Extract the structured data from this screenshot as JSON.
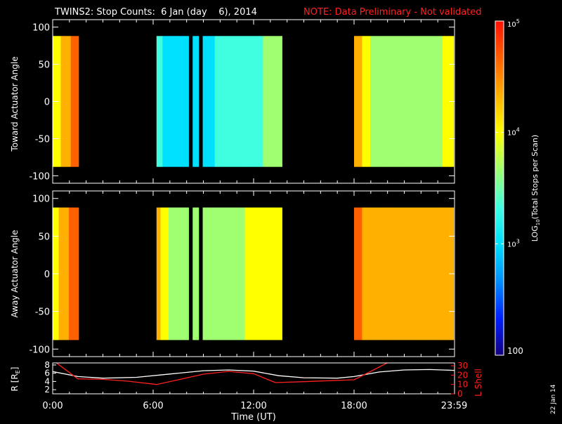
{
  "header": {
    "title": "TWINS2: Stop Counts:  6 Jan (day    6), 2014",
    "note": "NOTE: Data Preliminary - Not validated",
    "title_color": "#ffffff",
    "note_color": "#ff2020"
  },
  "side_stamp": "22 Jan 14",
  "colors": {
    "background": "#000000",
    "axis": "#ffffff",
    "colorscale": [
      "#140080",
      "#0020ff",
      "#0090ff",
      "#00e0ff",
      "#40ffe0",
      "#a0ff70",
      "#ffff00",
      "#ffb000",
      "#ff6000",
      "#ff1000"
    ],
    "r_line": "#ffffff",
    "lshell_line": "#ff2020"
  },
  "chart_data": [
    {
      "type": "heatmap",
      "panel": "toward",
      "ylabel": "Toward Actuator Angle",
      "xlim": [
        0,
        24
      ],
      "ylim": [
        -110,
        110
      ],
      "yticks": [
        "100",
        "50",
        "0",
        "-50",
        "-100"
      ],
      "ytick_values": [
        100,
        50,
        0,
        -50,
        -100
      ],
      "data_angle_range": [
        -88,
        88
      ],
      "data_intervals_hours": [
        [
          0.0,
          1.55
        ],
        [
          6.2,
          13.7
        ],
        [
          18.0,
          23.95
        ]
      ],
      "gaps_hours": [
        [
          8.15,
          8.4
        ],
        [
          8.7,
          8.95
        ]
      ],
      "log10_counts_profile": [
        {
          "t": 0.0,
          "v": 3.85
        },
        {
          "t": 0.6,
          "v": 4.2
        },
        {
          "t": 1.4,
          "v": 4.5
        },
        {
          "t": 6.2,
          "v": 3.3
        },
        {
          "t": 7.0,
          "v": 3.1
        },
        {
          "t": 9.0,
          "v": 3.15
        },
        {
          "t": 11.0,
          "v": 3.3
        },
        {
          "t": 12.5,
          "v": 3.5
        },
        {
          "t": 13.7,
          "v": 3.7
        },
        {
          "t": 18.0,
          "v": 4.4
        },
        {
          "t": 19.0,
          "v": 3.8
        },
        {
          "t": 21.0,
          "v": 3.6
        },
        {
          "t": 23.0,
          "v": 3.7
        },
        {
          "t": 23.95,
          "v": 4.0
        }
      ]
    },
    {
      "type": "heatmap",
      "panel": "away",
      "ylabel": "Away Actuator Angle",
      "xlim": [
        0,
        24
      ],
      "ylim": [
        -110,
        110
      ],
      "yticks": [
        "100",
        "50",
        "0",
        "-50",
        "-100"
      ],
      "ytick_values": [
        100,
        50,
        0,
        -50,
        -100
      ],
      "data_angle_range": [
        -88,
        88
      ],
      "data_intervals_hours": [
        [
          0.0,
          1.55
        ],
        [
          6.2,
          13.7
        ],
        [
          18.0,
          23.95
        ]
      ],
      "gaps_hours": [
        [
          8.15,
          8.4
        ],
        [
          8.7,
          8.95
        ]
      ],
      "log10_counts_profile": [
        {
          "t": 0.0,
          "v": 3.9
        },
        {
          "t": 0.6,
          "v": 4.25
        },
        {
          "t": 1.4,
          "v": 4.6
        },
        {
          "t": 6.2,
          "v": 4.3
        },
        {
          "t": 7.0,
          "v": 3.7
        },
        {
          "t": 9.0,
          "v": 3.6
        },
        {
          "t": 11.0,
          "v": 3.75
        },
        {
          "t": 12.5,
          "v": 3.9
        },
        {
          "t": 13.7,
          "v": 4.1
        },
        {
          "t": 18.0,
          "v": 4.5
        },
        {
          "t": 19.0,
          "v": 4.3
        },
        {
          "t": 21.0,
          "v": 4.2
        },
        {
          "t": 23.0,
          "v": 4.25
        },
        {
          "t": 23.95,
          "v": 4.4
        }
      ]
    },
    {
      "type": "line",
      "panel": "orbit",
      "ylabel": "R [R",
      "ylabel_sub": "E",
      "ylabel_close": "]",
      "y2label": "L Shell",
      "xlabel": "Time (UT)",
      "xticks": [
        "0:00",
        "6:00",
        "12:00",
        "18:00",
        "23:59"
      ],
      "xtick_values": [
        0,
        6,
        12,
        18,
        23.98
      ],
      "xlim": [
        0,
        24
      ],
      "ylim": [
        1,
        8.5
      ],
      "yticks": [
        "8",
        "6",
        "4",
        "2"
      ],
      "ytick_values": [
        8,
        6,
        4,
        2
      ],
      "y2lim": [
        0,
        33
      ],
      "y2ticks": [
        "30",
        "20",
        "10",
        "0"
      ],
      "y2tick_values": [
        30,
        20,
        10,
        0
      ],
      "series": [
        {
          "name": "R",
          "axis": "left",
          "x": [
            0,
            1.5,
            3,
            5,
            7,
            9,
            10.5,
            12,
            13.5,
            15,
            17,
            18,
            19.5,
            21,
            22.5,
            23.98
          ],
          "values": [
            6.4,
            5.2,
            4.8,
            5.0,
            5.8,
            6.6,
            6.8,
            6.5,
            5.4,
            4.9,
            4.8,
            5.2,
            6.3,
            6.8,
            6.9,
            6.7
          ]
        },
        {
          "name": "L Shell",
          "axis": "right",
          "x": [
            0,
            1.5,
            3,
            4.5,
            6.2,
            7.5,
            9,
            10.5,
            12,
            13.3,
            15,
            16.5,
            18,
            19,
            20.2
          ],
          "values": [
            36,
            16,
            15.5,
            13.5,
            10,
            15,
            21,
            24,
            21.5,
            12,
            13,
            14,
            15,
            24,
            35
          ]
        }
      ]
    },
    {
      "type": "heatmap",
      "panel": "colorbar",
      "label_prefix": "LOG",
      "label_sub": "10",
      "label_suffix": "(Total Stops per Scan)",
      "range_log10": [
        2,
        5
      ],
      "ticks": [
        {
          "value": 5,
          "base": "10",
          "exp": "5"
        },
        {
          "value": 4,
          "base": "10",
          "exp": "4"
        },
        {
          "value": 3,
          "base": "10",
          "exp": "3"
        },
        {
          "value": 2,
          "base": "100",
          "exp": ""
        }
      ]
    }
  ]
}
